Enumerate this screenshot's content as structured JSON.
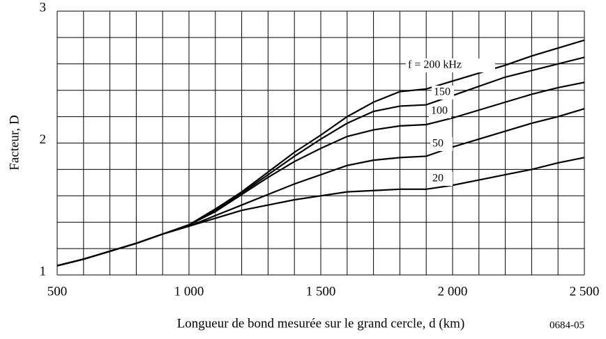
{
  "chart_data": {
    "type": "line",
    "xlabel": "Longueur de bond mesurée sur le grand cercle, d (km)",
    "ylabel": "Facteur, D",
    "annotation": "0684-05",
    "x": [
      500,
      600,
      700,
      800,
      900,
      1000,
      1100,
      1200,
      1300,
      1400,
      1500,
      1600,
      1700,
      1800,
      1900,
      2000,
      2100,
      2200,
      2300,
      2400,
      2500
    ],
    "series": [
      {
        "name": "f = 200 kHz",
        "color": "#000000",
        "values": [
          1.07,
          1.12,
          1.18,
          1.24,
          1.31,
          1.38,
          1.5,
          1.63,
          1.78,
          1.93,
          2.06,
          2.2,
          2.31,
          2.39,
          2.41,
          2.47,
          2.53,
          2.59,
          2.66,
          2.72,
          2.78
        ]
      },
      {
        "name": "150",
        "color": "#000000",
        "values": [
          1.07,
          1.12,
          1.18,
          1.24,
          1.31,
          1.38,
          1.49,
          1.62,
          1.76,
          1.9,
          2.03,
          2.15,
          2.24,
          2.28,
          2.29,
          2.36,
          2.43,
          2.5,
          2.55,
          2.6,
          2.65
        ]
      },
      {
        "name": "100",
        "color": "#000000",
        "values": [
          1.07,
          1.12,
          1.18,
          1.24,
          1.31,
          1.38,
          1.48,
          1.61,
          1.74,
          1.86,
          1.96,
          2.05,
          2.1,
          2.13,
          2.14,
          2.19,
          2.25,
          2.31,
          2.37,
          2.42,
          2.46
        ]
      },
      {
        "name": "50",
        "color": "#000000",
        "values": [
          1.07,
          1.12,
          1.18,
          1.24,
          1.31,
          1.37,
          1.45,
          1.53,
          1.61,
          1.69,
          1.76,
          1.83,
          1.87,
          1.89,
          1.9,
          1.97,
          2.03,
          2.09,
          2.15,
          2.2,
          2.26
        ]
      },
      {
        "name": "20",
        "color": "#000000",
        "values": [
          1.07,
          1.12,
          1.18,
          1.24,
          1.31,
          1.37,
          1.43,
          1.49,
          1.53,
          1.57,
          1.6,
          1.63,
          1.64,
          1.65,
          1.65,
          1.68,
          1.72,
          1.76,
          1.8,
          1.85,
          1.89
        ]
      }
    ],
    "xlim": [
      500,
      2500
    ],
    "ylim": [
      1,
      3
    ],
    "xticks": [
      500,
      {
        "value": 1000,
        "label": "1 000"
      },
      {
        "value": 1500,
        "label": "1 500"
      },
      {
        "value": 2000,
        "label": "2 000"
      },
      {
        "value": 2500,
        "label": "2 500"
      }
    ],
    "yticks": [
      1,
      2,
      3
    ],
    "xgrid": [
      500,
      600,
      700,
      800,
      900,
      1000,
      1100,
      1200,
      1300,
      1400,
      1500,
      1600,
      1700,
      1800,
      1900,
      2000,
      2100,
      2200,
      2300,
      2400,
      2500
    ],
    "ygrid": [
      1,
      1.2,
      1.4,
      1.6,
      1.8,
      2,
      2.2,
      2.4,
      2.6,
      2.8,
      3
    ]
  }
}
